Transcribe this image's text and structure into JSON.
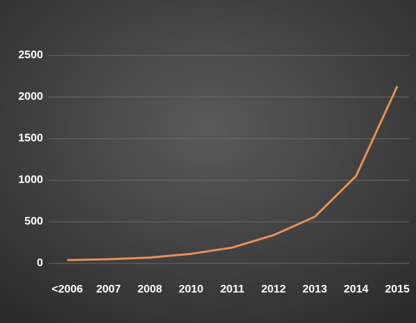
{
  "chart_data": {
    "type": "line",
    "categories": [
      "<2006",
      "2007",
      "2008",
      "2010",
      "2011",
      "2012",
      "2013",
      "2014",
      "2015"
    ],
    "series": [
      {
        "color": "#e8915a",
        "values": [
          40,
          50,
          70,
          115,
          190,
          340,
          560,
          1050,
          2130
        ]
      }
    ],
    "ylim": [
      0,
      2500
    ],
    "yticks": [
      0,
      500,
      1000,
      1500,
      2000,
      2500
    ],
    "grid": true
  }
}
